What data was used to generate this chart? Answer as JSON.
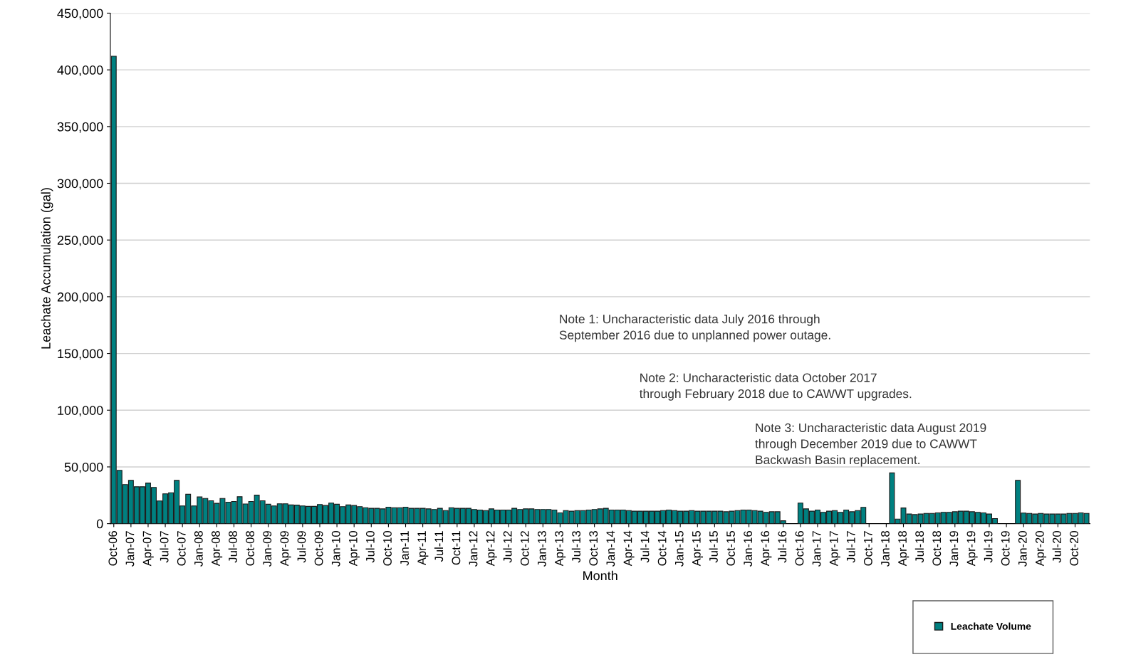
{
  "chart_data": {
    "type": "bar",
    "xlabel": "Month",
    "ylabel": "Leachate Accumulation (gal)",
    "categories": [
      "Oct-06",
      null,
      null,
      "Jan-07",
      null,
      null,
      "Apr-07",
      null,
      null,
      "Jul-07",
      null,
      null,
      "Oct-07",
      null,
      null,
      "Jan-08",
      null,
      null,
      "Apr-08",
      null,
      null,
      "Jul-08",
      null,
      null,
      "Oct-08",
      null,
      null,
      "Jan-09",
      null,
      null,
      "Apr-09",
      null,
      null,
      "Jul-09",
      null,
      null,
      "Oct-09",
      null,
      null,
      "Jan-10",
      null,
      null,
      "Apr-10",
      null,
      null,
      "Jul-10",
      null,
      null,
      "Oct-10",
      null,
      null,
      "Jan-11",
      null,
      null,
      "Apr-11",
      null,
      null,
      "Jul-11",
      null,
      null,
      "Oct-11",
      null,
      null,
      "Jan-12",
      null,
      null,
      "Apr-12",
      null,
      null,
      "Jul-12",
      null,
      null,
      "Oct-12",
      null,
      null,
      "Jan-13",
      null,
      null,
      "Apr-13",
      null,
      null,
      "Jul-13",
      null,
      null,
      "Oct-13",
      null,
      null,
      "Jan-14",
      null,
      null,
      "Apr-14",
      null,
      null,
      "Jul-14",
      null,
      null,
      "Oct-14",
      null,
      null,
      "Jan-15",
      null,
      null,
      "Apr-15",
      null,
      null,
      "Jul-15",
      null,
      null,
      "Oct-15",
      null,
      null,
      "Jan-16",
      null,
      null,
      "Apr-16",
      null,
      null,
      "Jul-16",
      null,
      null,
      "Oct-16",
      null,
      null,
      "Jan-17",
      null,
      null,
      "Apr-17",
      null,
      null,
      "Jul-17",
      null,
      null,
      "Oct-17",
      null,
      null,
      "Jan-18",
      null,
      null,
      "Apr-18",
      null,
      null,
      "Jul-18",
      null,
      null,
      "Oct-18",
      null,
      null,
      "Jan-19",
      null,
      null,
      "Apr-19",
      null,
      null,
      "Jul-19",
      null,
      null,
      "Oct-19",
      null,
      null,
      "Jan-20",
      null,
      null,
      "Apr-20",
      null,
      null,
      "Jul-20",
      null,
      null,
      "Oct-20",
      null,
      null
    ],
    "series": [
      {
        "name": "Leachate Volume",
        "color": "#008080",
        "values": [
          412000,
          47000,
          34400,
          38100,
          32500,
          32500,
          35800,
          31900,
          20000,
          26300,
          27200,
          38100,
          15600,
          25900,
          15600,
          23500,
          22200,
          20200,
          17900,
          22200,
          18900,
          19500,
          23700,
          17300,
          19500,
          25100,
          20200,
          17100,
          15600,
          17500,
          17500,
          16500,
          16300,
          15600,
          15200,
          15200,
          16900,
          16000,
          18100,
          17100,
          15000,
          16500,
          16000,
          15000,
          14000,
          13500,
          13500,
          13000,
          14500,
          14000,
          14000,
          14500,
          13500,
          13500,
          13500,
          13000,
          12500,
          13500,
          11500,
          14000,
          13500,
          13500,
          13500,
          12500,
          12000,
          11500,
          13000,
          12000,
          12000,
          12000,
          13500,
          12500,
          13000,
          13000,
          12500,
          12500,
          12500,
          12000,
          9500,
          11500,
          11000,
          11500,
          11500,
          12000,
          12500,
          13000,
          13500,
          12000,
          12000,
          12000,
          11500,
          11000,
          11000,
          11000,
          11000,
          11000,
          11500,
          12000,
          11500,
          11000,
          11000,
          11500,
          11000,
          11000,
          11000,
          11000,
          11000,
          10500,
          11000,
          11500,
          12000,
          12000,
          11500,
          11000,
          10000,
          10500,
          10500,
          2500,
          null,
          null,
          18100,
          13000,
          11000,
          12000,
          10000,
          11000,
          11500,
          10000,
          12000,
          10500,
          11500,
          14400,
          null,
          null,
          null,
          null,
          44700,
          4000,
          13800,
          8500,
          8000,
          8500,
          9000,
          9000,
          9500,
          10000,
          10000,
          10500,
          11000,
          11000,
          10500,
          10000,
          9500,
          8500,
          4500,
          null,
          null,
          null,
          38100,
          9300,
          9000,
          8500,
          9000,
          8500,
          8500,
          8500,
          8500,
          9000,
          9000,
          9500,
          9000
        ]
      }
    ],
    "ylim": [
      0,
      450000
    ],
    "yticks": [
      0,
      {
        "value": 50000,
        "label": "50,000"
      },
      {
        "value": 100000,
        "label": "100,000"
      },
      {
        "value": 150000,
        "label": "150,000"
      },
      {
        "value": 200000,
        "label": "200,000"
      },
      {
        "value": 250000,
        "label": "250,000"
      },
      {
        "value": 300000,
        "label": "300,000"
      },
      {
        "value": 350000,
        "label": "350,000"
      },
      {
        "value": 400000,
        "label": "400,000"
      },
      {
        "value": 450000,
        "label": "450,000"
      }
    ],
    "grid": "y",
    "legend": "bottom right",
    "annotations": [
      "Note 1: Uncharacteristic data July 2016 through\nSeptember 2016 due to unplanned power outage.",
      "Note 2: Uncharacteristic data October 2017\nthrough February 2018 due to CAWWT upgrades.",
      "Note 3: Uncharacteristic data August 2019\nthrough December 2019 due to CAWWT\nBackwash Basin replacement."
    ]
  }
}
